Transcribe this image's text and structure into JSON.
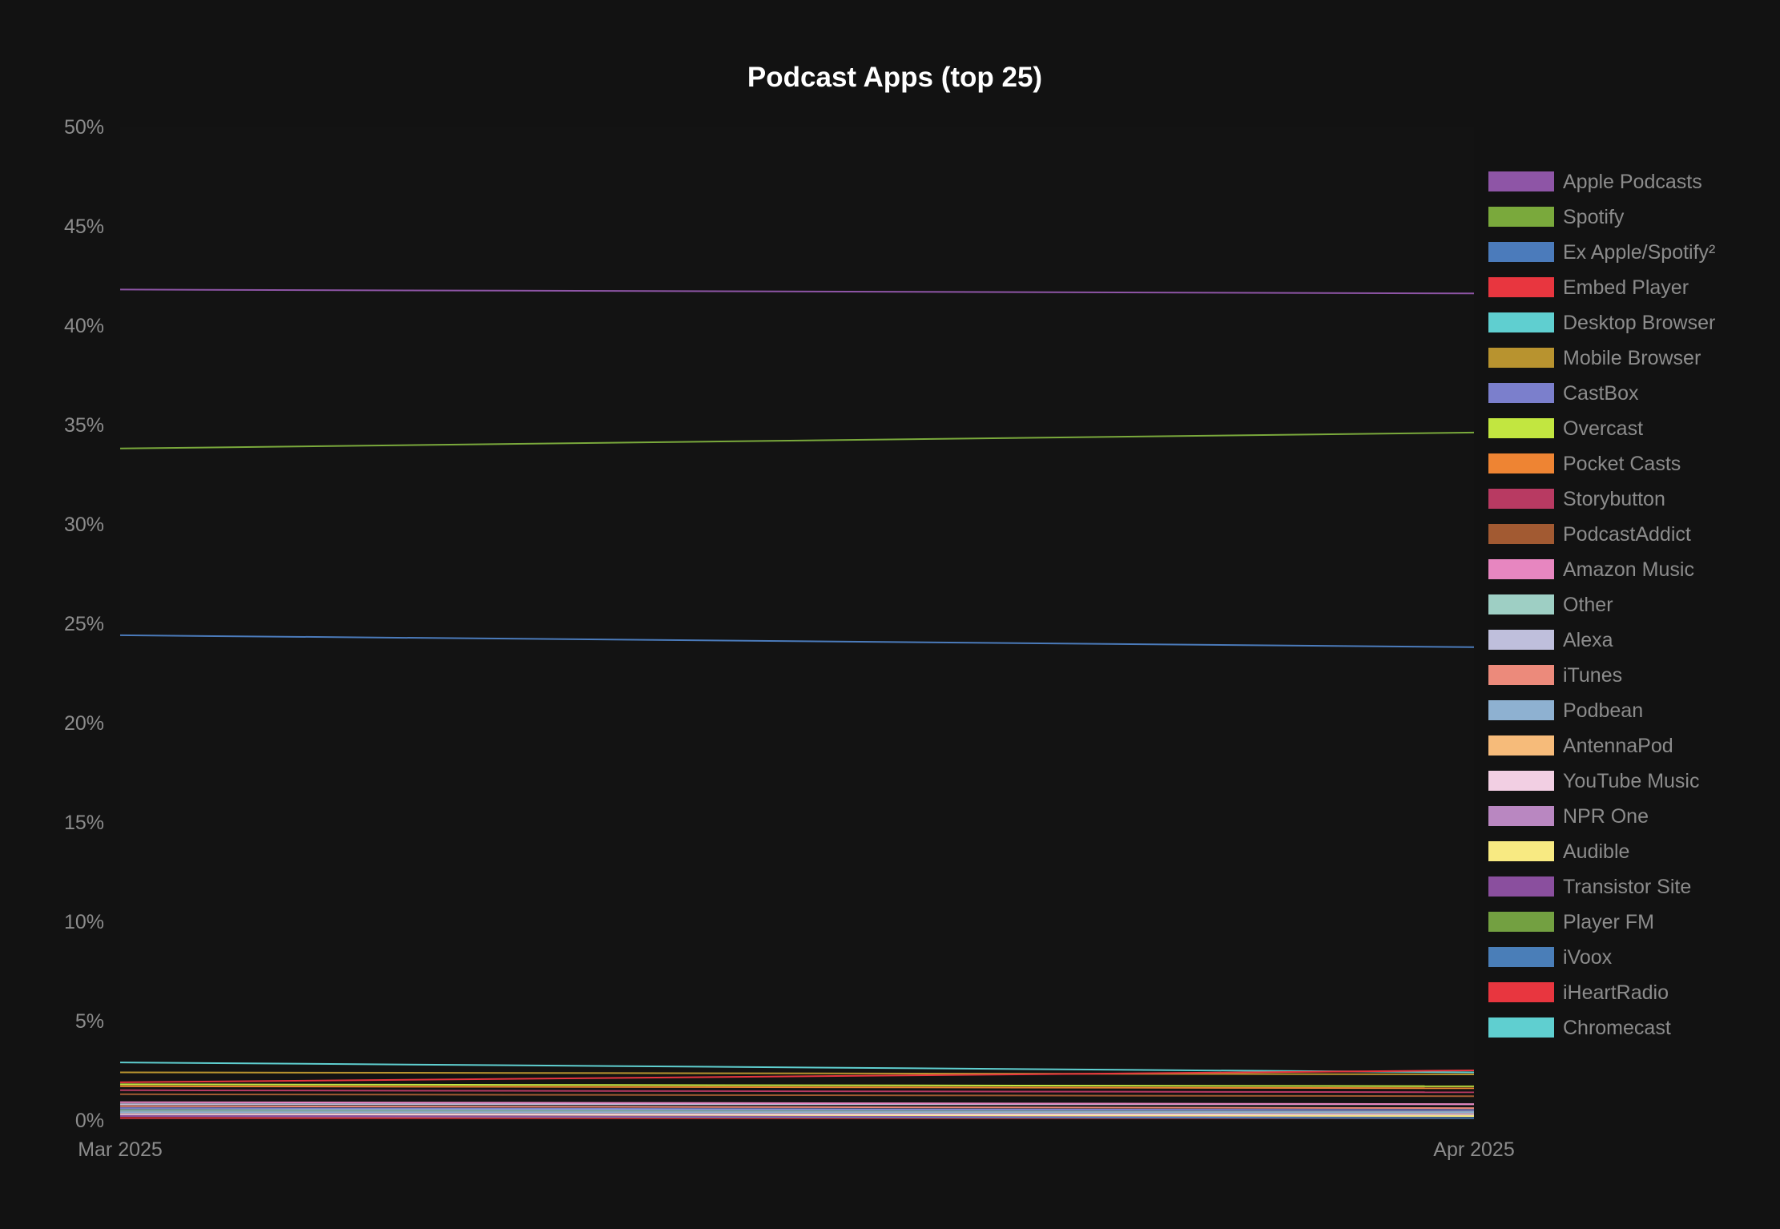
{
  "chart_data": {
    "type": "line",
    "title": "Podcast Apps (top 25)",
    "xlabel": "",
    "ylabel": "",
    "x": [
      "Mar 2025",
      "Apr 2025"
    ],
    "ylim": [
      0,
      50
    ],
    "yticks": [
      0,
      5,
      10,
      15,
      20,
      25,
      30,
      35,
      40,
      45,
      50
    ],
    "ytick_labels": [
      "0%",
      "5%",
      "10%",
      "15%",
      "20%",
      "25%",
      "30%",
      "35%",
      "40%",
      "45%",
      "50%"
    ],
    "grid": false,
    "legend_position": "right",
    "series": [
      {
        "name": "Apple Podcasts",
        "color": "#8e55a6",
        "values": [
          41.8,
          41.6
        ]
      },
      {
        "name": "Spotify",
        "color": "#7aa93c",
        "values": [
          33.8,
          34.6
        ]
      },
      {
        "name": "Ex Apple/Spotify²",
        "color": "#4b7bbb",
        "values": [
          24.4,
          23.8
        ]
      },
      {
        "name": "Embed Player",
        "color": "#e8363f",
        "values": [
          1.9,
          2.5
        ]
      },
      {
        "name": "Desktop Browser",
        "color": "#5fcfd0",
        "values": [
          2.9,
          2.4
        ]
      },
      {
        "name": "Mobile Browser",
        "color": "#b8932f",
        "values": [
          2.4,
          2.3
        ]
      },
      {
        "name": "CastBox",
        "color": "#7b7fcc",
        "values": [
          0.6,
          0.5
        ]
      },
      {
        "name": "Overcast",
        "color": "#c2e640",
        "values": [
          1.8,
          1.7
        ]
      },
      {
        "name": "Pocket Casts",
        "color": "#ee8433",
        "values": [
          1.7,
          1.6
        ]
      },
      {
        "name": "Storybutton",
        "color": "#b83a62",
        "values": [
          1.5,
          1.4
        ]
      },
      {
        "name": "PodcastAddict",
        "color": "#a25a32",
        "values": [
          1.3,
          1.2
        ]
      },
      {
        "name": "Amazon Music",
        "color": "#e786c0",
        "values": [
          0.9,
          0.8
        ]
      },
      {
        "name": "Other",
        "color": "#9ecfc4",
        "values": [
          0.5,
          0.5
        ]
      },
      {
        "name": "Alexa",
        "color": "#bfbfdc",
        "values": [
          0.8,
          0.8
        ]
      },
      {
        "name": "iTunes",
        "color": "#ec8a7b",
        "values": [
          0.7,
          0.6
        ]
      },
      {
        "name": "Podbean",
        "color": "#8eb1d1",
        "values": [
          0.4,
          0.4
        ]
      },
      {
        "name": "AntennaPod",
        "color": "#f6bb7a",
        "values": [
          0.4,
          0.4
        ]
      },
      {
        "name": "YouTube Music",
        "color": "#f2cfe3",
        "values": [
          0.3,
          0.3
        ]
      },
      {
        "name": "NPR One",
        "color": "#b987c1",
        "values": [
          0.3,
          0.3
        ]
      },
      {
        "name": "Audible",
        "color": "#f8ea82",
        "values": [
          0.3,
          0.2
        ]
      },
      {
        "name": "Transistor Site",
        "color": "#8a4f9e",
        "values": [
          0.2,
          0.2
        ]
      },
      {
        "name": "Player FM",
        "color": "#73a041",
        "values": [
          0.2,
          0.2
        ]
      },
      {
        "name": "iVoox",
        "color": "#4a7eb8",
        "values": [
          0.2,
          0.1
        ]
      },
      {
        "name": "iHeartRadio",
        "color": "#e8363f",
        "values": [
          0.1,
          0.1
        ]
      },
      {
        "name": "Chromecast",
        "color": "#5fcfd0",
        "values": [
          0.1,
          0.1
        ]
      }
    ]
  }
}
